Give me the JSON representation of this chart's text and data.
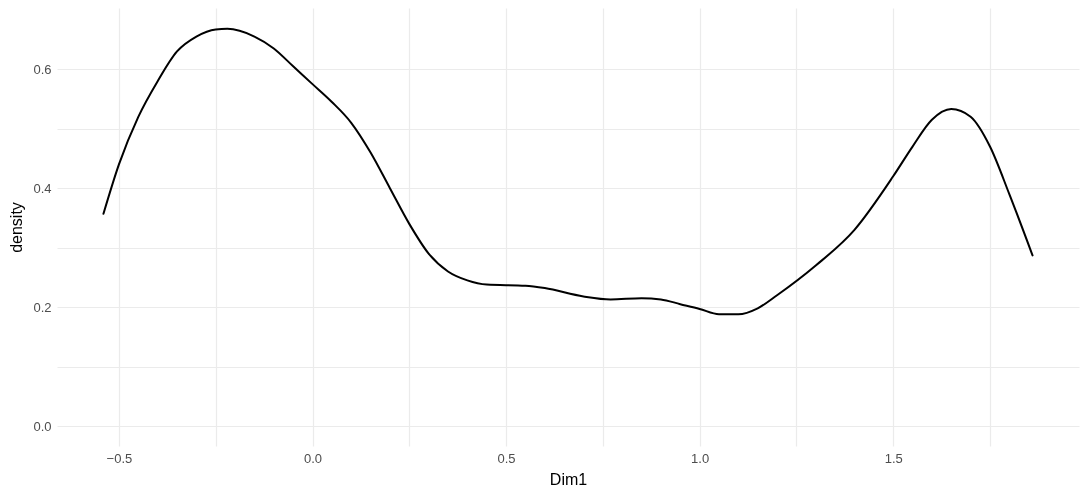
{
  "chart_data": {
    "type": "line",
    "xlabel": "Dim1",
    "ylabel": "density",
    "x": [
      -0.54,
      -0.5,
      -0.45,
      -0.4,
      -0.35,
      -0.3,
      -0.25,
      -0.22,
      -0.15,
      -0.1,
      -0.05,
      0.0,
      0.05,
      0.1,
      0.15,
      0.2,
      0.25,
      0.3,
      0.35,
      0.4,
      0.45,
      0.55,
      0.6,
      0.7,
      0.77,
      0.85,
      0.9,
      0.95,
      1.0,
      1.05,
      1.1,
      1.15,
      1.2,
      1.3,
      1.4,
      1.5,
      1.55,
      1.6,
      1.65,
      1.7,
      1.75,
      1.8,
      1.86
    ],
    "series": [
      {
        "color": "#000000",
        "values": [
          0.357,
          0.44,
          0.52,
          0.58,
          0.63,
          0.655,
          0.667,
          0.668,
          0.655,
          0.635,
          0.605,
          0.575,
          0.545,
          0.51,
          0.46,
          0.4,
          0.34,
          0.29,
          0.26,
          0.245,
          0.238,
          0.236,
          0.232,
          0.218,
          0.213,
          0.215,
          0.213,
          0.205,
          0.197,
          0.188,
          0.188,
          0.198,
          0.22,
          0.27,
          0.33,
          0.42,
          0.47,
          0.515,
          0.533,
          0.52,
          0.47,
          0.39,
          0.287
        ]
      }
    ],
    "xlim": [
      -0.66,
      1.98
    ],
    "ylim": [
      -0.0335,
      0.703
    ],
    "xticks": [
      {
        "value": -0.5,
        "label": "−0.5"
      },
      {
        "value": -0.25,
        "label": null
      },
      {
        "value": 0,
        "label": "0.0"
      },
      {
        "value": 0.25,
        "label": null
      },
      0.5,
      {
        "value": 0.75,
        "label": null
      },
      {
        "value": 1,
        "label": "1.0"
      },
      {
        "value": 1.25,
        "label": null
      },
      1.5,
      {
        "value": 1.75,
        "label": null
      }
    ],
    "yticks": [
      {
        "value": 0,
        "label": "0.0"
      },
      {
        "value": 0.1,
        "label": null
      },
      0.2,
      {
        "value": 0.3,
        "label": null
      },
      0.4,
      {
        "value": 0.5,
        "label": null
      },
      0.6
    ],
    "grid": true,
    "marker": "none",
    "line_style": "solid"
  }
}
